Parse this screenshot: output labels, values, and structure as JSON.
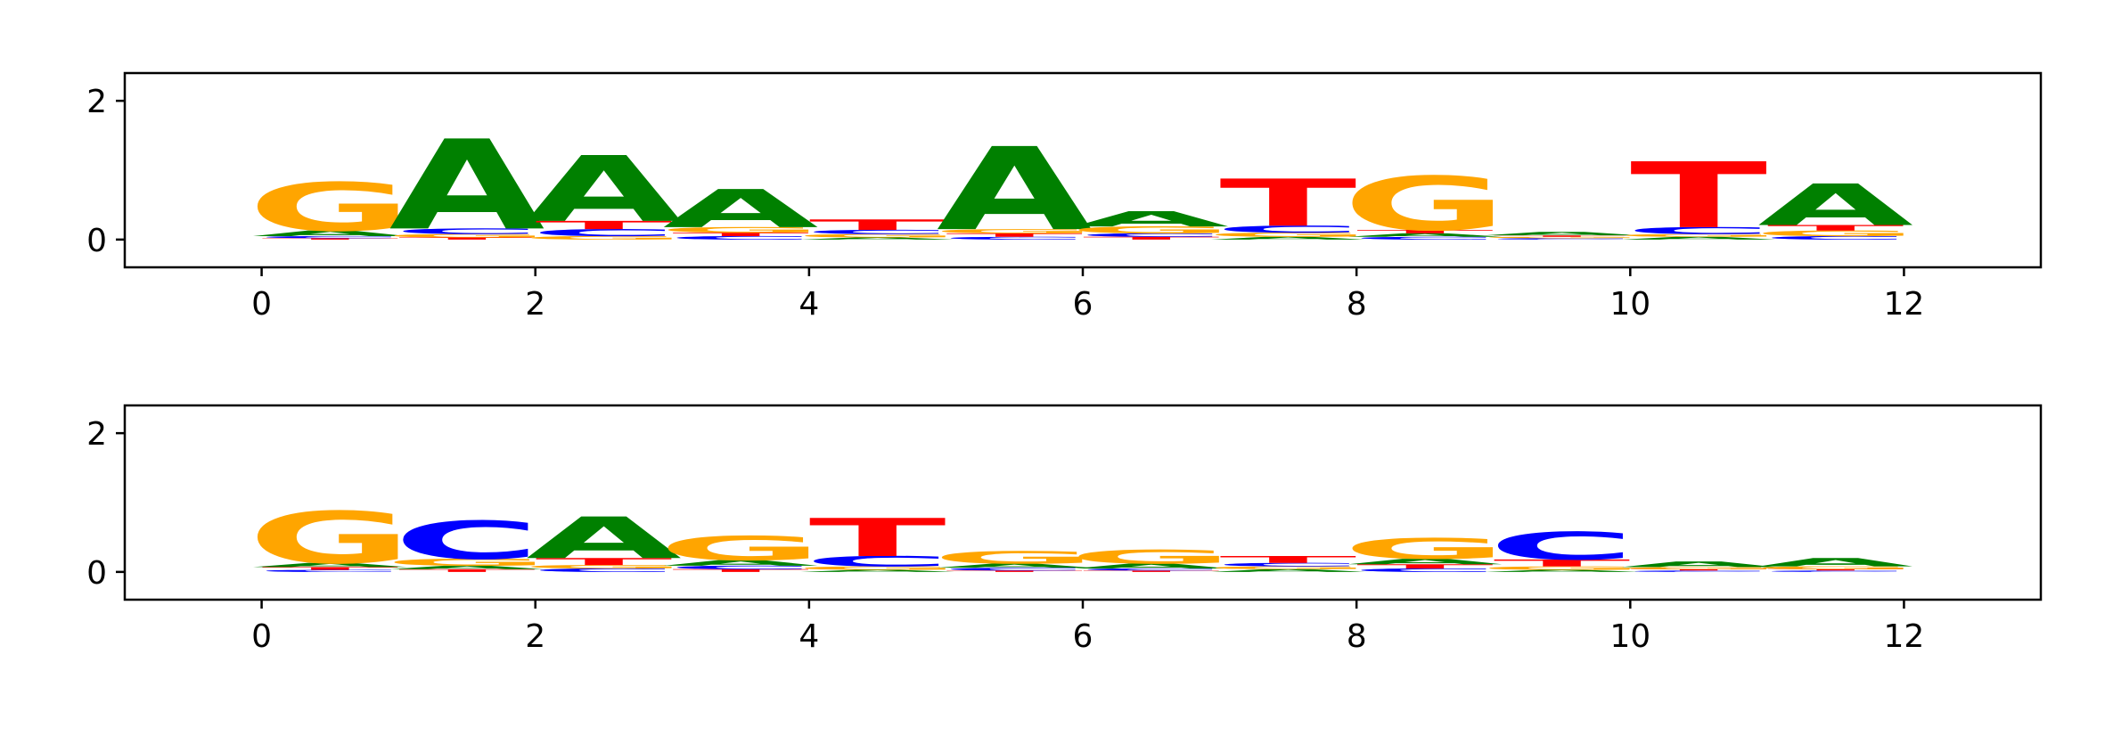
{
  "colors": {
    "A": "#008000",
    "C": "#0000ff",
    "G": "#ffa500",
    "T": "#ff0000"
  },
  "chart_data": [
    {
      "type": "sequence-logo",
      "title": "",
      "xlabel": "",
      "ylabel": "",
      "xlim": [
        -1,
        13
      ],
      "ylim": [
        -0.4,
        2.4
      ],
      "xticks": [
        "0",
        "2",
        "4",
        "6",
        "8",
        "10",
        "12"
      ],
      "yticks": [
        "0",
        "2"
      ],
      "positions": [
        {
          "x": 0,
          "A": 0.08,
          "C": 0.03,
          "G": 0.7,
          "T": 0.02
        },
        {
          "x": 1,
          "A": 1.3,
          "C": 0.08,
          "G": 0.05,
          "T": 0.03
        },
        {
          "x": 2,
          "A": 0.95,
          "C": 0.1,
          "G": 0.05,
          "T": 0.12
        },
        {
          "x": 3,
          "A": 0.55,
          "C": 0.05,
          "G": 0.08,
          "T": 0.05
        },
        {
          "x": 4,
          "A": 0.03,
          "C": 0.06,
          "G": 0.05,
          "T": 0.15
        },
        {
          "x": 5,
          "A": 1.2,
          "C": 0.04,
          "G": 0.06,
          "T": 0.05
        },
        {
          "x": 6,
          "A": 0.22,
          "C": 0.05,
          "G": 0.1,
          "T": 0.04
        },
        {
          "x": 7,
          "A": 0.04,
          "C": 0.1,
          "G": 0.06,
          "T": 0.68
        },
        {
          "x": 8,
          "A": 0.05,
          "C": 0.04,
          "G": 0.78,
          "T": 0.05
        },
        {
          "x": 9,
          "A": 0.05,
          "C": 0.02,
          "G": 0.02,
          "T": 0.02
        },
        {
          "x": 10,
          "A": 0.04,
          "C": 0.1,
          "G": 0.04,
          "T": 0.95
        },
        {
          "x": 11,
          "A": 0.6,
          "C": 0.05,
          "G": 0.08,
          "T": 0.08
        }
      ]
    },
    {
      "type": "sequence-logo",
      "title": "",
      "xlabel": "",
      "ylabel": "",
      "xlim": [
        -1,
        13
      ],
      "ylim": [
        -0.4,
        2.4
      ],
      "xticks": [
        "0",
        "2",
        "4",
        "6",
        "8",
        "10",
        "12"
      ],
      "yticks": [
        "0",
        "2"
      ],
      "positions": [
        {
          "x": 0,
          "A": 0.06,
          "C": 0.03,
          "G": 0.75,
          "T": 0.04
        },
        {
          "x": 1,
          "A": 0.05,
          "C": 0.55,
          "G": 0.1,
          "T": 0.04
        },
        {
          "x": 2,
          "A": 0.6,
          "C": 0.05,
          "G": 0.05,
          "T": 0.1
        },
        {
          "x": 3,
          "A": 0.08,
          "C": 0.05,
          "G": 0.35,
          "T": 0.04
        },
        {
          "x": 4,
          "A": 0.03,
          "C": 0.15,
          "G": 0.05,
          "T": 0.55
        },
        {
          "x": 5,
          "A": 0.06,
          "C": 0.04,
          "G": 0.18,
          "T": 0.02
        },
        {
          "x": 6,
          "A": 0.07,
          "C": 0.03,
          "G": 0.2,
          "T": 0.02
        },
        {
          "x": 7,
          "A": 0.04,
          "C": 0.05,
          "G": 0.04,
          "T": 0.1
        },
        {
          "x": 8,
          "A": 0.08,
          "C": 0.05,
          "G": 0.3,
          "T": 0.06
        },
        {
          "x": 9,
          "A": 0.03,
          "C": 0.4,
          "G": 0.05,
          "T": 0.1
        },
        {
          "x": 10,
          "A": 0.08,
          "C": 0.02,
          "G": 0.03,
          "T": 0.02
        },
        {
          "x": 11,
          "A": 0.12,
          "C": 0.02,
          "G": 0.04,
          "T": 0.02
        }
      ]
    }
  ]
}
